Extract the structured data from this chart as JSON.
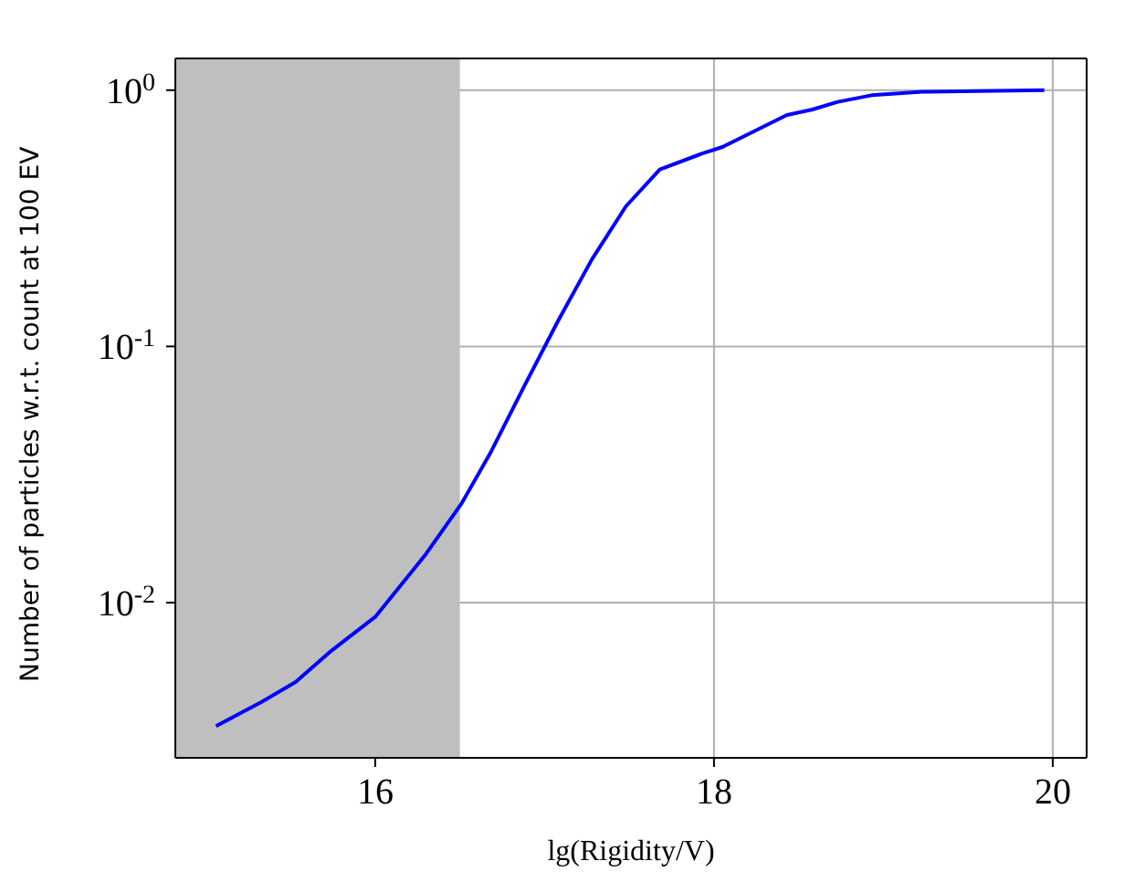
{
  "chart_data": {
    "type": "line",
    "xlabel": "lg(Rigidity/V)",
    "ylabel": "Number of particles w.r.t. count at 100 EV",
    "x": [
      15.06,
      15.33,
      15.53,
      15.73,
      16.0,
      16.3,
      16.51,
      16.68,
      16.88,
      17.08,
      17.28,
      17.48,
      17.68,
      17.93,
      18.05,
      18.43,
      18.58,
      18.73,
      18.93,
      19.23,
      19.95
    ],
    "series": [
      {
        "color": "#0000ff",
        "values": [
          0.0033,
          0.0041,
          0.0049,
          0.0064,
          0.0088,
          0.0155,
          0.0244,
          0.0384,
          0.07,
          0.126,
          0.219,
          0.352,
          0.49,
          0.566,
          0.6,
          0.8,
          0.84,
          0.9,
          0.955,
          0.985,
          1.0
        ]
      }
    ],
    "xlim": [
      14.82,
      20.2
    ],
    "xticks": [
      16,
      18,
      20
    ],
    "ylim": [
      0.00248,
      1.33
    ],
    "yticks": [
      {
        "value": 1,
        "label": "10$^{0}$"
      },
      {
        "value": 0.1,
        "label": "10$^{-1}$"
      },
      {
        "value": 0.01,
        "label": "10$^{-2}$"
      }
    ],
    "log": "y",
    "grid": true,
    "line_style": "solid",
    "marker": "none",
    "bands": [
      {
        "axis": "x",
        "from": 14.82,
        "to": 16.5,
        "color": "#bfbfbf"
      }
    ]
  }
}
